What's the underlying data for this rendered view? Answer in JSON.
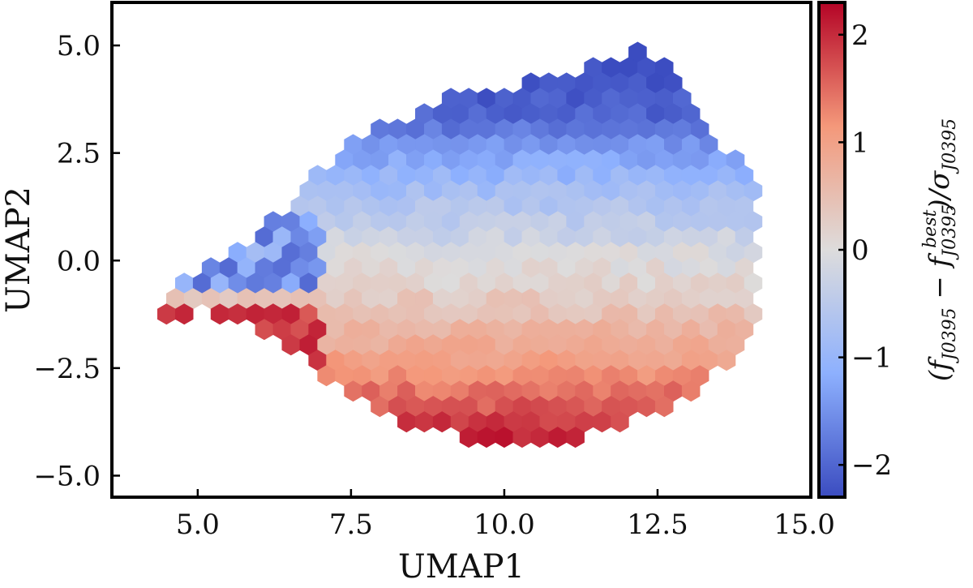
{
  "chart_data": {
    "type": "heatmap",
    "subtype": "hexbin",
    "xlabel": "UMAP1",
    "ylabel": "UMAP2",
    "xlim": [
      3.6,
      15.0
    ],
    "ylim": [
      -5.5,
      6.0
    ],
    "xticks": [
      5.0,
      7.5,
      10.0,
      12.5,
      15.0
    ],
    "xtick_labels": [
      "5.0",
      "7.5",
      "10.0",
      "12.5",
      "15.0"
    ],
    "yticks": [
      -5.0,
      -2.5,
      0.0,
      2.5,
      5.0
    ],
    "ytick_labels": [
      "−5.0",
      "−2.5",
      "0.0",
      "2.5",
      "5.0"
    ],
    "colorbar": {
      "label": "(f_J0395 − f_J0395^best)/σ_J0395",
      "label_main": "(f",
      "label_sub1": "J0395",
      "label_mid": " − f",
      "label_sup": "best",
      "label_sub2": "J0395",
      "label_end": ")/σ",
      "label_sub3": "J0395",
      "vmin": -2.3,
      "vmax": 2.3,
      "ticks": [
        -2,
        -1,
        0,
        1,
        2
      ],
      "tick_labels": [
        "−2",
        "−1",
        "0",
        "1",
        "2"
      ],
      "colormap": "coolwarm",
      "color_low": "#3b4cc0",
      "color_mid": "#dddddd",
      "color_high": "#b40426"
    },
    "hexbin": {
      "gridsize_dx": 0.29,
      "region_description_points": "boundary of populated region in data units",
      "boundary": [
        [
          4.4,
          -1.0
        ],
        [
          4.6,
          -0.5
        ],
        [
          5.0,
          -0.2
        ],
        [
          5.6,
          0.2
        ],
        [
          6.2,
          0.9
        ],
        [
          6.6,
          1.4
        ],
        [
          7.0,
          2.1
        ],
        [
          7.5,
          2.7
        ],
        [
          8.0,
          3.1
        ],
        [
          8.6,
          3.5
        ],
        [
          9.3,
          3.9
        ],
        [
          10.0,
          4.0
        ],
        [
          11.0,
          4.3
        ],
        [
          11.6,
          4.6
        ],
        [
          12.0,
          4.9
        ],
        [
          12.7,
          4.8
        ],
        [
          13.0,
          4.3
        ],
        [
          13.1,
          3.5
        ],
        [
          13.4,
          2.9
        ],
        [
          13.8,
          2.3
        ],
        [
          14.1,
          1.6
        ],
        [
          14.2,
          0.6
        ],
        [
          14.2,
          -0.4
        ],
        [
          14.1,
          -1.3
        ],
        [
          13.9,
          -2.0
        ],
        [
          13.5,
          -2.6
        ],
        [
          13.0,
          -3.2
        ],
        [
          12.5,
          -3.6
        ],
        [
          12.0,
          -3.7
        ],
        [
          11.4,
          -4.0
        ],
        [
          10.8,
          -4.3
        ],
        [
          10.0,
          -4.3
        ],
        [
          9.2,
          -4.1
        ],
        [
          8.5,
          -3.9
        ],
        [
          7.8,
          -3.4
        ],
        [
          7.2,
          -3.0
        ],
        [
          6.8,
          -2.2
        ],
        [
          6.3,
          -1.9
        ],
        [
          5.7,
          -1.4
        ],
        [
          5.0,
          -1.2
        ],
        [
          4.8,
          -1.4
        ],
        [
          4.5,
          -1.35
        ],
        [
          4.3,
          -1.1
        ]
      ],
      "value_trend": "value decreases with UMAP2 (red at bottom, blue at top)",
      "value_at_y": [
        [
          -4.3,
          2.2
        ],
        [
          -3.5,
          1.7
        ],
        [
          -2.5,
          1.1
        ],
        [
          -1.5,
          0.6
        ],
        [
          -0.5,
          0.15
        ],
        [
          0.0,
          0.0
        ],
        [
          0.8,
          -0.4
        ],
        [
          1.8,
          -0.9
        ],
        [
          2.6,
          -1.4
        ],
        [
          3.3,
          -2.0
        ],
        [
          4.5,
          -2.3
        ]
      ]
    }
  }
}
